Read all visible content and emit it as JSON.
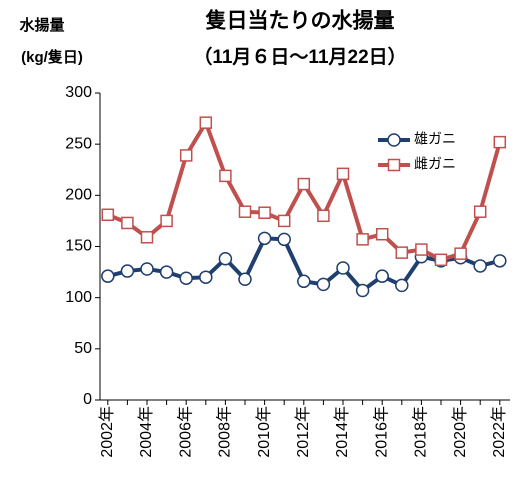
{
  "chart_data": {
    "type": "line",
    "title": "隻日当たりの水揚量",
    "subtitle": "（11月６日～11月22日）",
    "ylabel": [
      "水揚量",
      "(kg/隻日)"
    ],
    "categories": [
      "2002年",
      null,
      "2004年",
      null,
      "2006年",
      null,
      "2008年",
      null,
      "2010年",
      null,
      "2012年",
      null,
      "2014年",
      null,
      "2016年",
      null,
      "2018年",
      null,
      "2020年",
      null,
      "2022年"
    ],
    "series": [
      {
        "name": "雄ガニ",
        "color": "#1f3f6e",
        "marker": "circle",
        "values": [
          121,
          126,
          128,
          125,
          119,
          120,
          138,
          118,
          158,
          157,
          116,
          113,
          129,
          107,
          121,
          112,
          140,
          136,
          139,
          131,
          136
        ]
      },
      {
        "name": "雌ガニ",
        "color": "#c0504d",
        "marker": "square",
        "values": [
          181,
          173,
          159,
          175,
          239,
          271,
          219,
          184,
          183,
          175,
          211,
          180,
          221,
          157,
          162,
          144,
          147,
          137,
          143,
          184,
          252
        ]
      }
    ],
    "ylim": [
      0,
      300
    ],
    "yticks": [
      0,
      50,
      100,
      150,
      200,
      250,
      300
    ],
    "grid": false,
    "legend": "upper right"
  }
}
